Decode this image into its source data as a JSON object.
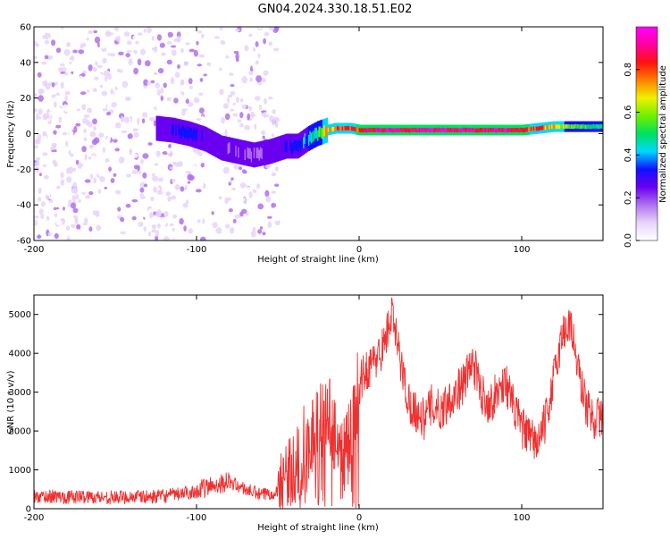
{
  "title": "GN04.2024.330.18.51.E02",
  "chart_data": [
    {
      "type": "heatmap",
      "xlabel": "Height of straight line (km)",
      "ylabel": "Frequency (Hz)",
      "xlim": [
        -200,
        150
      ],
      "ylim": [
        -60,
        60
      ],
      "xticks": [
        -200,
        -100,
        0,
        100
      ],
      "yticks": [
        -60,
        -40,
        -20,
        0,
        20,
        40,
        60
      ],
      "colorbar": {
        "label": "Normalized spectral amplitude",
        "range": [
          0,
          1
        ],
        "ticks": [
          0.0,
          0.2,
          0.4,
          0.6,
          0.8
        ],
        "colors": [
          "#ffffff",
          "#e8d4fa",
          "#b070f0",
          "#6a00f0",
          "#1010ff",
          "#00d8ff",
          "#00e060",
          "#70f000",
          "#f0f000",
          "#ff8000",
          "#ff1010",
          "#ff00a0",
          "#ff00ff"
        ]
      },
      "ridge": {
        "x": [
          -125,
          -115,
          -105,
          -95,
          -85,
          -75,
          -65,
          -55,
          -45,
          -38,
          -32,
          -26,
          -20,
          -15,
          -10,
          -5,
          0,
          10,
          20,
          30,
          40,
          50,
          60,
          70,
          80,
          90,
          100,
          110,
          120,
          130,
          140,
          150
        ],
        "freq": [
          3,
          2,
          0,
          -3,
          -8,
          -10,
          -12,
          -10,
          -7,
          -7,
          -3,
          0,
          2,
          3,
          3,
          3,
          2,
          2,
          2,
          2,
          2,
          2,
          2,
          2,
          2,
          2,
          2,
          3,
          4,
          4,
          4,
          4
        ],
        "amplitude": [
          0.25,
          0.3,
          0.35,
          0.3,
          0.25,
          0.22,
          0.2,
          0.25,
          0.3,
          0.35,
          0.4,
          0.55,
          0.75,
          0.8,
          0.85,
          0.85,
          0.9,
          0.95,
          0.95,
          0.95,
          0.95,
          0.95,
          0.95,
          0.95,
          0.95,
          0.95,
          0.9,
          0.85,
          0.7,
          0.6,
          0.55,
          0.5
        ]
      },
      "noise_region_x": [
        -200,
        -50
      ]
    },
    {
      "type": "line",
      "xlabel": "Height of straight line (km)",
      "ylabel": "SNR (10 * v/v)",
      "xlim": [
        -200,
        150
      ],
      "ylim": [
        0,
        5500
      ],
      "xticks": [
        -200,
        -100,
        0,
        100
      ],
      "yticks": [
        0,
        1000,
        2000,
        3000,
        4000,
        5000
      ],
      "color": "#f03030",
      "series": [
        {
          "x": [
            -200,
            -190,
            -180,
            -170,
            -160,
            -150,
            -140,
            -130,
            -120,
            -110,
            -100,
            -90,
            -80,
            -70,
            -60,
            -50,
            -45,
            -40,
            -35,
            -30,
            -25,
            -20,
            -15,
            -10,
            -5,
            0,
            5,
            10,
            15,
            20,
            25,
            30,
            35,
            40,
            45,
            50,
            55,
            60,
            65,
            70,
            75,
            80,
            85,
            90,
            95,
            100,
            105,
            110,
            115,
            120,
            125,
            130,
            135,
            140,
            145,
            150
          ],
          "y": [
            300,
            320,
            300,
            310,
            300,
            290,
            310,
            300,
            330,
            380,
            450,
            600,
            700,
            500,
            350,
            450,
            700,
            1000,
            1500,
            1800,
            2200,
            2500,
            2000,
            1500,
            1800,
            3200,
            3600,
            3800,
            4200,
            5000,
            3900,
            2800,
            2500,
            2300,
            2700,
            2500,
            2800,
            3000,
            3300,
            3800,
            3000,
            2700,
            3000,
            3300,
            2600,
            2100,
            1800,
            1700,
            2300,
            3400,
            4500,
            4800,
            3500,
            2600,
            2300,
            2400
          ]
        }
      ]
    }
  ]
}
